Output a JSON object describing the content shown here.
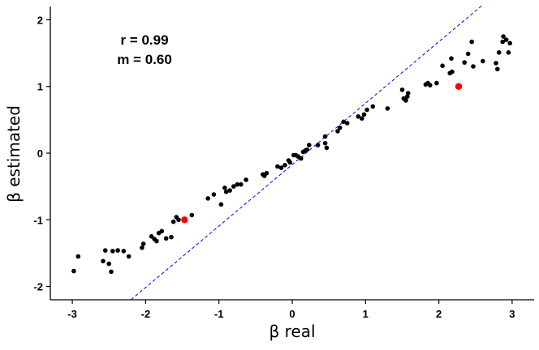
{
  "chart_data": {
    "type": "scatter",
    "title": "",
    "xlabel": "β real",
    "ylabel": "β estimated",
    "xlim": [
      -3.3,
      3.3
    ],
    "ylim": [
      -2.2,
      2.2
    ],
    "xticks": [
      -3,
      -2,
      -1,
      0,
      1,
      2,
      3
    ],
    "yticks": [
      -2,
      -1,
      0,
      1,
      2
    ],
    "grid": false,
    "legend": "none",
    "reference_line": {
      "slope": 1,
      "intercept": 0,
      "style": "dashed",
      "color": "#0000ee"
    },
    "annotations": [
      "r = 0.99",
      "m = 0.60"
    ],
    "series": [
      {
        "color": "#000000",
        "points": [
          [
            -2.98,
            -1.77
          ],
          [
            -2.92,
            -1.55
          ],
          [
            -2.58,
            -1.62
          ],
          [
            -2.55,
            -1.46
          ],
          [
            -2.5,
            -1.66
          ],
          [
            -2.47,
            -1.78
          ],
          [
            -2.45,
            -1.47
          ],
          [
            -2.38,
            -1.46
          ],
          [
            -2.3,
            -1.47
          ],
          [
            -2.23,
            -1.55
          ],
          [
            -2.05,
            -1.42
          ],
          [
            -2.03,
            -1.36
          ],
          [
            -1.92,
            -1.25
          ],
          [
            -1.88,
            -1.29
          ],
          [
            -1.85,
            -1.32
          ],
          [
            -1.82,
            -1.2
          ],
          [
            -1.78,
            -1.17
          ],
          [
            -1.72,
            -1.28
          ],
          [
            -1.65,
            -1.26
          ],
          [
            -1.62,
            -1.03
          ],
          [
            -1.58,
            -0.96
          ],
          [
            -1.55,
            -1.0
          ],
          [
            -1.37,
            -0.93
          ],
          [
            -1.15,
            -0.68
          ],
          [
            -1.07,
            -0.62
          ],
          [
            -0.97,
            -0.77
          ],
          [
            -0.92,
            -0.52
          ],
          [
            -0.9,
            -0.58
          ],
          [
            -0.85,
            -0.56
          ],
          [
            -0.8,
            -0.5
          ],
          [
            -0.75,
            -0.47
          ],
          [
            -0.7,
            -0.47
          ],
          [
            -0.63,
            -0.4
          ],
          [
            -0.4,
            -0.32
          ],
          [
            -0.38,
            -0.34
          ],
          [
            -0.35,
            -0.3
          ],
          [
            -0.2,
            -0.2
          ],
          [
            -0.15,
            -0.22
          ],
          [
            -0.1,
            -0.18
          ],
          [
            -0.05,
            -0.11
          ],
          [
            -0.03,
            -0.14
          ],
          [
            0.02,
            -0.03
          ],
          [
            0.05,
            -0.03
          ],
          [
            0.08,
            -0.05
          ],
          [
            0.12,
            -0.08
          ],
          [
            0.15,
            0.02
          ],
          [
            0.18,
            0.04
          ],
          [
            0.2,
            0.05
          ],
          [
            0.23,
            0.12
          ],
          [
            0.35,
            0.12
          ],
          [
            0.45,
            0.25
          ],
          [
            0.45,
            0.15
          ],
          [
            0.47,
            0.08
          ],
          [
            0.62,
            0.33
          ],
          [
            0.65,
            0.38
          ],
          [
            0.7,
            0.47
          ],
          [
            0.75,
            0.45
          ],
          [
            0.9,
            0.55
          ],
          [
            0.95,
            0.52
          ],
          [
            0.98,
            0.58
          ],
          [
            1.02,
            0.65
          ],
          [
            1.1,
            0.7
          ],
          [
            1.3,
            0.67
          ],
          [
            1.5,
            0.95
          ],
          [
            1.52,
            0.82
          ],
          [
            1.55,
            0.79
          ],
          [
            1.57,
            0.85
          ],
          [
            1.58,
            0.9
          ],
          [
            1.82,
            1.03
          ],
          [
            1.85,
            1.05
          ],
          [
            1.88,
            1.02
          ],
          [
            1.97,
            1.05
          ],
          [
            2.05,
            1.31
          ],
          [
            2.15,
            1.2
          ],
          [
            2.17,
            1.42
          ],
          [
            2.18,
            1.22
          ],
          [
            2.35,
            1.36
          ],
          [
            2.4,
            1.49
          ],
          [
            2.45,
            1.67
          ],
          [
            2.47,
            1.3
          ],
          [
            2.6,
            1.38
          ],
          [
            2.78,
            1.35
          ],
          [
            2.8,
            1.26
          ],
          [
            2.82,
            1.51
          ],
          [
            2.87,
            1.67
          ],
          [
            2.88,
            1.75
          ],
          [
            2.92,
            1.7
          ],
          [
            2.95,
            1.51
          ],
          [
            2.97,
            1.65
          ]
        ]
      },
      {
        "color": "#ff0000",
        "points": [
          [
            -1.47,
            -1.0
          ],
          [
            2.27,
            1.0
          ]
        ]
      }
    ]
  }
}
